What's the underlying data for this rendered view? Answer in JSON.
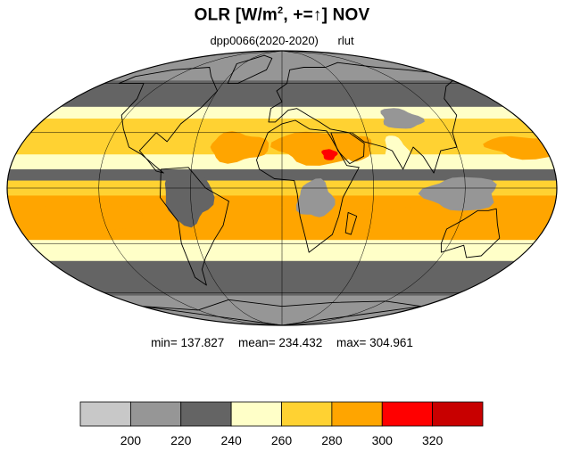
{
  "title": {
    "prefix": "OLR [W/m",
    "sup": "2",
    "suffix": ", +=↑] NOV"
  },
  "subtitle": {
    "run": "dpp0066(2020-2020)",
    "variable": "rlut"
  },
  "stats": {
    "min": "min= 137.827",
    "mean": "mean= 234.432",
    "max": "max= 304.961"
  },
  "chart_data": {
    "type": "heatmap",
    "projection": "mollweide",
    "title": "OLR [W/m2, +=↑] NOV",
    "subtitle": "dpp0066(2020-2020)   rlut",
    "summary": {
      "min": 137.827,
      "mean": 234.432,
      "max": 304.961
    },
    "colorbar": {
      "orientation": "horizontal",
      "levels": [
        200,
        220,
        240,
        260,
        280,
        300,
        320
      ],
      "tick_labels": [
        "200",
        "220",
        "240",
        "260",
        "280",
        "300",
        "320"
      ],
      "colors": [
        "#c8c8c8",
        "#969696",
        "#646464",
        "#ffffc8",
        "#ffd232",
        "#ffa500",
        "#ff0000",
        "#c80000"
      ]
    },
    "bands": [
      {
        "lat_from": 90,
        "lat_to": 62,
        "level": 1
      },
      {
        "lat_from": 62,
        "lat_to": 45,
        "level": 2
      },
      {
        "lat_from": 45,
        "lat_to": 38,
        "level": 3
      },
      {
        "lat_from": 38,
        "lat_to": 18,
        "level": 4
      },
      {
        "lat_from": 18,
        "lat_to": 10,
        "level": 3
      },
      {
        "lat_from": 10,
        "lat_to": 4,
        "level": 2
      },
      {
        "lat_from": 4,
        "lat_to": -4,
        "level": 4
      },
      {
        "lat_from": -4,
        "lat_to": -28,
        "level": 5
      },
      {
        "lat_from": -28,
        "lat_to": -40,
        "level": 3
      },
      {
        "lat_from": -40,
        "lat_to": -62,
        "level": 2
      },
      {
        "lat_from": -62,
        "lat_to": -90,
        "level": 1
      }
    ],
    "patches": [
      {
        "name": "sahara",
        "lon": 25,
        "lat": 22,
        "rlon": 30,
        "rlat": 9,
        "level": 5
      },
      {
        "name": "sudan-max",
        "lon": 32,
        "lat": 18,
        "rlon": 5,
        "rlat": 3,
        "level": 6
      },
      {
        "name": "arabia",
        "lon": 50,
        "lat": 22,
        "rlon": 12,
        "rlat": 7,
        "level": 5
      },
      {
        "name": "amazon",
        "lon": -62,
        "lat": -5,
        "rlon": 16,
        "rlat": 14,
        "level": 2
      },
      {
        "name": "congo",
        "lon": 22,
        "lat": -6,
        "rlon": 12,
        "rlat": 10,
        "level": 1
      },
      {
        "name": "maritime-continent",
        "lon": 118,
        "lat": -3,
        "rlon": 24,
        "rlat": 9,
        "level": 1
      },
      {
        "name": "south-pacific",
        "lon": -130,
        "lat": -15,
        "rlon": 35,
        "rlat": 9,
        "level": 5
      },
      {
        "name": "south-indian",
        "lon": 75,
        "lat": -18,
        "rlon": 25,
        "rlat": 8,
        "level": 5
      },
      {
        "name": "atlantic-subtropic",
        "lon": -30,
        "lat": 22,
        "rlon": 20,
        "rlat": 8,
        "level": 5
      },
      {
        "name": "pacific-subtropic",
        "lon": 170,
        "lat": 22,
        "rlon": 30,
        "rlat": 6,
        "level": 5
      },
      {
        "name": "tibet",
        "lon": 90,
        "lat": 38,
        "rlon": 15,
        "rlat": 6,
        "level": 1
      },
      {
        "name": "indian-subcontinent",
        "lon": 78,
        "lat": 20,
        "rlon": 8,
        "rlat": 8,
        "level": 3
      }
    ]
  }
}
